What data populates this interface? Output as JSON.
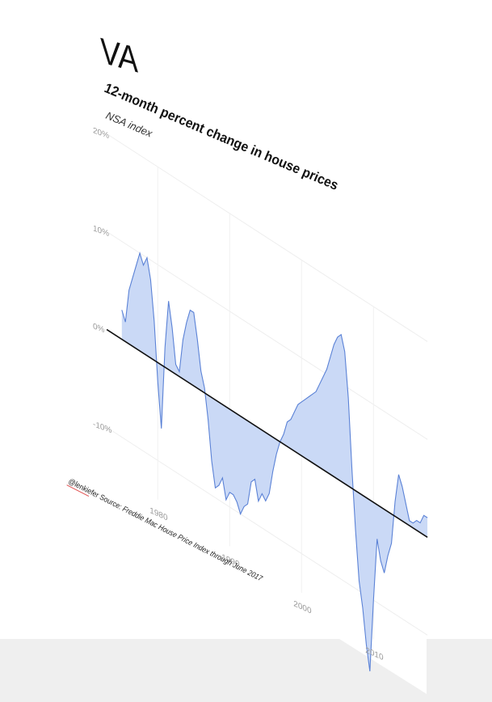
{
  "header": {
    "state": "VA",
    "title": "12-month percent change in house prices",
    "subtitle": "NSA index"
  },
  "caption": {
    "handle": "@lenkiefer",
    "source_prefix": "Source: ",
    "source_text": "Freddie Mac House Price Index through June 2017"
  },
  "colors": {
    "area_fill": "#cad9f6",
    "line": "#5b82d6",
    "zero_line": "#111111",
    "background_floor": "#efefef"
  },
  "chart_data": {
    "type": "area",
    "title": "12-month percent change in house prices",
    "subtitle": "NSA index",
    "xlabel": "",
    "ylabel": "",
    "xlim": [
      1973,
      2017.5
    ],
    "ylim": [
      -20,
      20
    ],
    "y_ticks": [
      20,
      10,
      0,
      -10
    ],
    "y_tick_labels": [
      "20%",
      "10%",
      "0%",
      "-10%"
    ],
    "x_ticks": [
      1980,
      1990,
      2000,
      2010
    ],
    "x_tick_labels": [
      "1980",
      "1990",
      "2000",
      "2010"
    ],
    "grid": true,
    "legend": "none",
    "series": [
      {
        "x": [
          1975.0,
          1975.5,
          1976.0,
          1976.5,
          1977.0,
          1977.5,
          1978.0,
          1978.5,
          1979.0,
          1979.5,
          1980.0,
          1980.5,
          1981.0,
          1981.5,
          1982.0,
          1982.5,
          1983.0,
          1983.5,
          1984.0,
          1984.5,
          1985.0,
          1985.5,
          1986.0,
          1986.5,
          1987.0,
          1987.5,
          1988.0,
          1988.5,
          1989.0,
          1989.5,
          1990.0,
          1990.5,
          1991.0,
          1991.5,
          1992.0,
          1992.5,
          1993.0,
          1993.5,
          1994.0,
          1994.5,
          1995.0,
          1995.5,
          1996.0,
          1996.5,
          1997.0,
          1997.5,
          1998.0,
          1998.5,
          1999.0,
          1999.5,
          2000.0,
          2000.5,
          2001.0,
          2001.5,
          2002.0,
          2002.5,
          2003.0,
          2003.5,
          2004.0,
          2004.5,
          2005.0,
          2005.5,
          2006.0,
          2006.5,
          2007.0,
          2007.5,
          2008.0,
          2008.5,
          2009.0,
          2009.5,
          2010.0,
          2010.5,
          2011.0,
          2011.5,
          2012.0,
          2012.5,
          2013.0,
          2013.5,
          2014.0,
          2014.5,
          2015.0,
          2015.5,
          2016.0,
          2016.5,
          2017.0,
          2017.5
        ],
        "y": [
          3.0,
          2.0,
          5.5,
          7.0,
          8.5,
          10.0,
          9.0,
          10.0,
          8.0,
          4.0,
          -2.0,
          -6.5,
          2.0,
          7.0,
          4.5,
          1.0,
          0.5,
          4.0,
          6.0,
          7.5,
          7.5,
          5.0,
          2.0,
          0.5,
          -2.5,
          -6.5,
          -9.0,
          -8.5,
          -7.5,
          -9.5,
          -8.5,
          -8.5,
          -9.0,
          -10.0,
          -9.0,
          -8.5,
          -6.0,
          -5.5,
          -7.5,
          -6.5,
          -7.0,
          -6.0,
          -3.5,
          -1.5,
          0.0,
          1.0,
          2.5,
          3.0,
          4.0,
          5.0,
          5.5,
          6.0,
          6.5,
          7.0,
          7.5,
          8.5,
          9.5,
          10.5,
          12.0,
          13.5,
          14.5,
          15.0,
          13.5,
          9.0,
          2.0,
          -4.0,
          -9.0,
          -11.5,
          -15.0,
          -17.5,
          -10.0,
          -3.5,
          -5.5,
          -6.5,
          -4.5,
          -3.0,
          1.5,
          4.5,
          3.5,
          2.0,
          0.5,
          0.5,
          1.0,
          1.0,
          2.0,
          2.0
        ]
      }
    ]
  }
}
